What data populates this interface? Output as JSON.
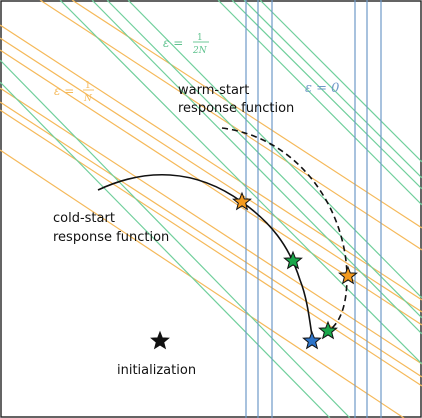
{
  "diagram": {
    "labels": {
      "eps_1_over_n": {
        "prefix": "ε = ",
        "numerator": "1",
        "denominator": "N"
      },
      "eps_1_over_2n": {
        "prefix": "ε = ",
        "numerator": "1",
        "denominator": "2N"
      },
      "eps_0": "ε = 0",
      "warm_start": [
        "warm-start",
        "response function"
      ],
      "cold_start": [
        "cold-start",
        "response function"
      ],
      "initialization": "initialization"
    },
    "colors": {
      "orange": "#f5b95a",
      "green": "#70cf9c",
      "blue": "#6f99c8",
      "black": "#111111",
      "star_orange": "#f39a1f",
      "star_green": "#1aa64a",
      "star_blue": "#2d74c9"
    }
  }
}
